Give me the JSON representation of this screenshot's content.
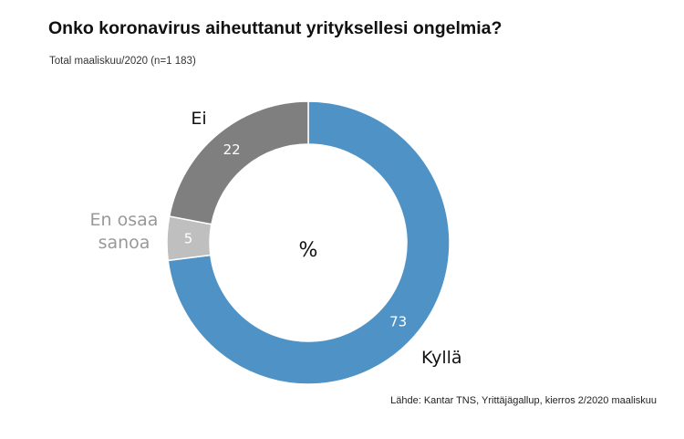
{
  "title": "Onko koronavirus aiheuttanut yrityksellesi ongelmia?",
  "subtitle": "Total maaliskuu/2020 (n=1 183)",
  "source": "Lähde: Kantar TNS, Yrittäjägallup, kierros 2/2020 maaliskuu",
  "chart_data": {
    "type": "pie",
    "center_label": "%",
    "slices": [
      {
        "category": "Kyllä",
        "value": 73,
        "color": "#4e92c6",
        "label_color": "#111111",
        "value_color": "#ffffff"
      },
      {
        "category": "En osaa sanoa",
        "lines": [
          "En osaa",
          "sanoa"
        ],
        "value": 5,
        "color": "#bfbfbf",
        "label_color": "#999999",
        "value_color": "#ffffff"
      },
      {
        "category": "Ei",
        "value": 22,
        "color": "#7f7f7f",
        "label_color": "#111111",
        "value_color": "#ffffff"
      }
    ]
  }
}
